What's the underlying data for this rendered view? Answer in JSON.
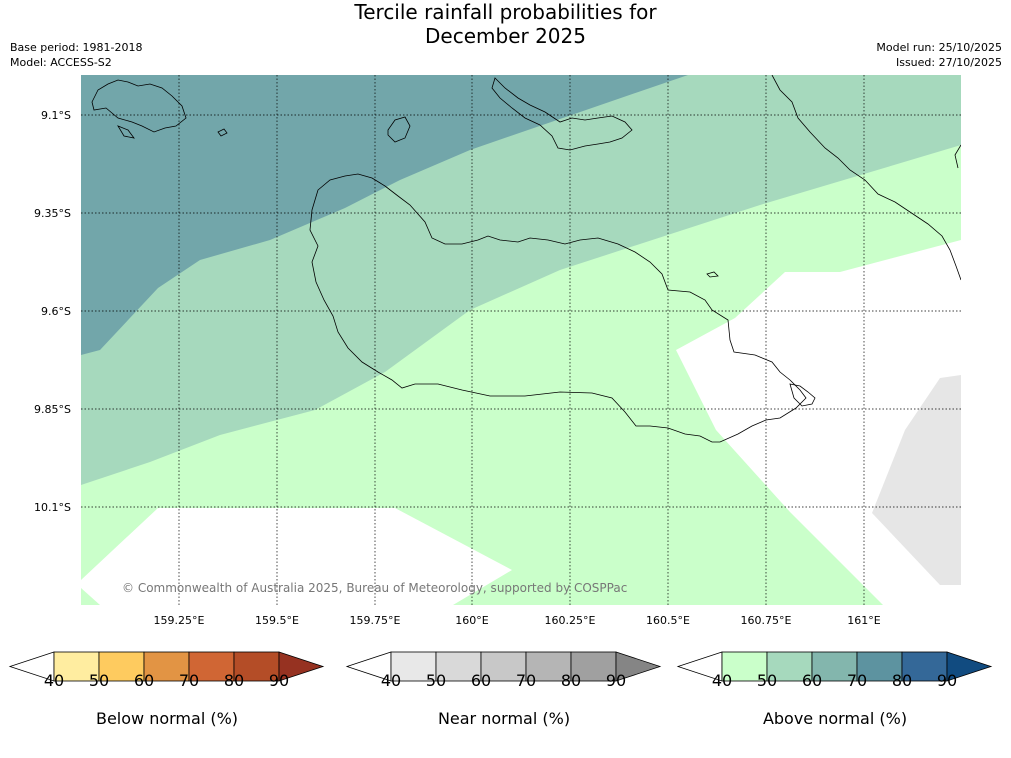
{
  "title": {
    "line1": "Tercile rainfall probabilities for",
    "line2": "December 2025"
  },
  "meta_left": {
    "base_period": "Base period: 1981-2018",
    "model": "Model: ACCESS-S2"
  },
  "meta_right": {
    "model_run": "Model run: 25/10/2025",
    "issued": "Issued: 27/10/2025"
  },
  "map": {
    "lat_labels": [
      "9.1°S",
      "9.35°S",
      "9.6°S",
      "9.85°S",
      "10.1°S"
    ],
    "lon_labels": [
      "159.25°E",
      "159.5°E",
      "159.75°E",
      "160°E",
      "160.25°E",
      "160.5°E",
      "160.75°E",
      "161°E"
    ],
    "copyright": "© Commonwealth of Australia 2025, Bureau of Meteorology, supported by COSPPac",
    "colors": {
      "above_50_60": "#a6d9bd",
      "above_40_50": "#caffca",
      "above_60_70": "#72a6aa",
      "near_40_50": "#e6e6e6",
      "coast": "#000000",
      "grid": "#000000"
    }
  },
  "colorbars": [
    {
      "name": "below",
      "label": "Below normal (%)",
      "ticks": [
        "40",
        "50",
        "60",
        "70",
        "80",
        "90"
      ],
      "colors": [
        "#ffffff",
        "#ffeda0",
        "#fecb5f",
        "#e29444",
        "#d06634",
        "#b44d27",
        "#963221"
      ]
    },
    {
      "name": "near",
      "label": "Near normal (%)",
      "ticks": [
        "40",
        "50",
        "60",
        "70",
        "80",
        "90"
      ],
      "colors": [
        "#ffffff",
        "#e8e8e8",
        "#d9d9d9",
        "#c8c8c8",
        "#b5b5b5",
        "#a0a0a0",
        "#858585"
      ]
    },
    {
      "name": "above",
      "label": "Above normal (%)",
      "ticks": [
        "40",
        "50",
        "60",
        "70",
        "80",
        "90"
      ],
      "colors": [
        "#ffffff",
        "#caffca",
        "#a6d9bd",
        "#83b6ad",
        "#5d93a0",
        "#346898",
        "#114b80"
      ]
    }
  ]
}
